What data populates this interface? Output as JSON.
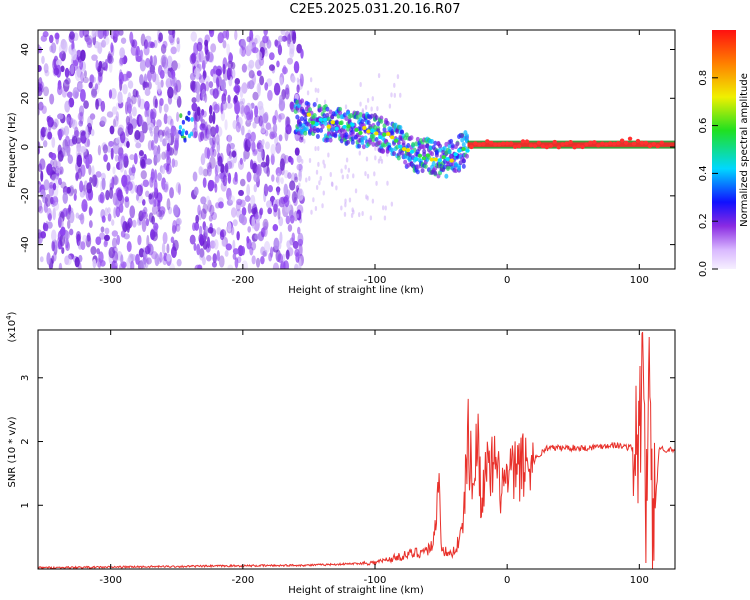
{
  "title": "C2E5.2025.031.20.16.R07",
  "colors": {
    "scatter": "#7a2be0",
    "line": "#e8302a",
    "ridge_band": "#e8302a",
    "ridge_edge": "#1a8c1a"
  },
  "chart_data": [
    {
      "type": "heatmap",
      "xlabel": "Height of straight line (km)",
      "ylabel": "Frequency (Hz)",
      "xlim": [
        -355,
        127
      ],
      "ylim": [
        -50,
        48
      ],
      "xticks": [
        -300,
        -200,
        -100,
        0,
        100
      ],
      "yticks": [
        40,
        20,
        0,
        -20,
        -40
      ],
      "colorbar": {
        "label": "Normalized spectral amplitude",
        "ticks": [
          0.0,
          0.2,
          0.4,
          0.6,
          0.8
        ],
        "range": [
          0,
          1
        ]
      },
      "ridge": {
        "x": [
          -160,
          -150,
          -140,
          -130,
          -120,
          -110,
          -100,
          -90,
          -80,
          -70,
          -60,
          -50,
          -40,
          -30,
          -20,
          -10,
          0,
          20,
          40,
          60,
          80,
          90,
          100,
          110,
          127
        ],
        "y": [
          13,
          12,
          10,
          9,
          8,
          7,
          6,
          4,
          1,
          -4,
          -3,
          -6,
          -4,
          0,
          2,
          1,
          1,
          1,
          1,
          1,
          1,
          2,
          2,
          1,
          1
        ]
      }
    },
    {
      "type": "line",
      "xlabel": "Height of straight line (km)",
      "ylabel": "SNR (10 * v/v)",
      "scale_note": "(x10",
      "scale_exp": "4",
      "scale_close": ")",
      "xlim": [
        -355,
        127
      ],
      "ylim": [
        0,
        3.75
      ],
      "xticks": [
        -300,
        -200,
        -100,
        0,
        100
      ],
      "yticks": [
        1,
        2,
        3
      ],
      "series": [
        {
          "x": [
            -355,
            -300,
            -250,
            -200,
            -150,
            -120,
            -100,
            -90,
            -80,
            -70,
            -60,
            -55,
            -52,
            -50,
            -45,
            -40,
            -35,
            -32,
            -30,
            -25,
            -22,
            -20,
            -15,
            -10,
            -5,
            0,
            10,
            20,
            30,
            40,
            60,
            80,
            95,
            100,
            103,
            105,
            107,
            110,
            115,
            127
          ],
          "y": [
            0.02,
            0.03,
            0.04,
            0.05,
            0.06,
            0.08,
            0.1,
            0.15,
            0.2,
            0.25,
            0.3,
            0.45,
            1.6,
            0.4,
            0.2,
            0.3,
            0.5,
            1.1,
            2.1,
            1.3,
            2.2,
            1.2,
            1.5,
            1.6,
            1.3,
            1.4,
            1.6,
            1.7,
            1.9,
            1.9,
            1.9,
            1.95,
            1.9,
            1.85,
            3.6,
            0.2,
            3.5,
            0.3,
            1.9,
            1.85
          ]
        }
      ]
    }
  ]
}
